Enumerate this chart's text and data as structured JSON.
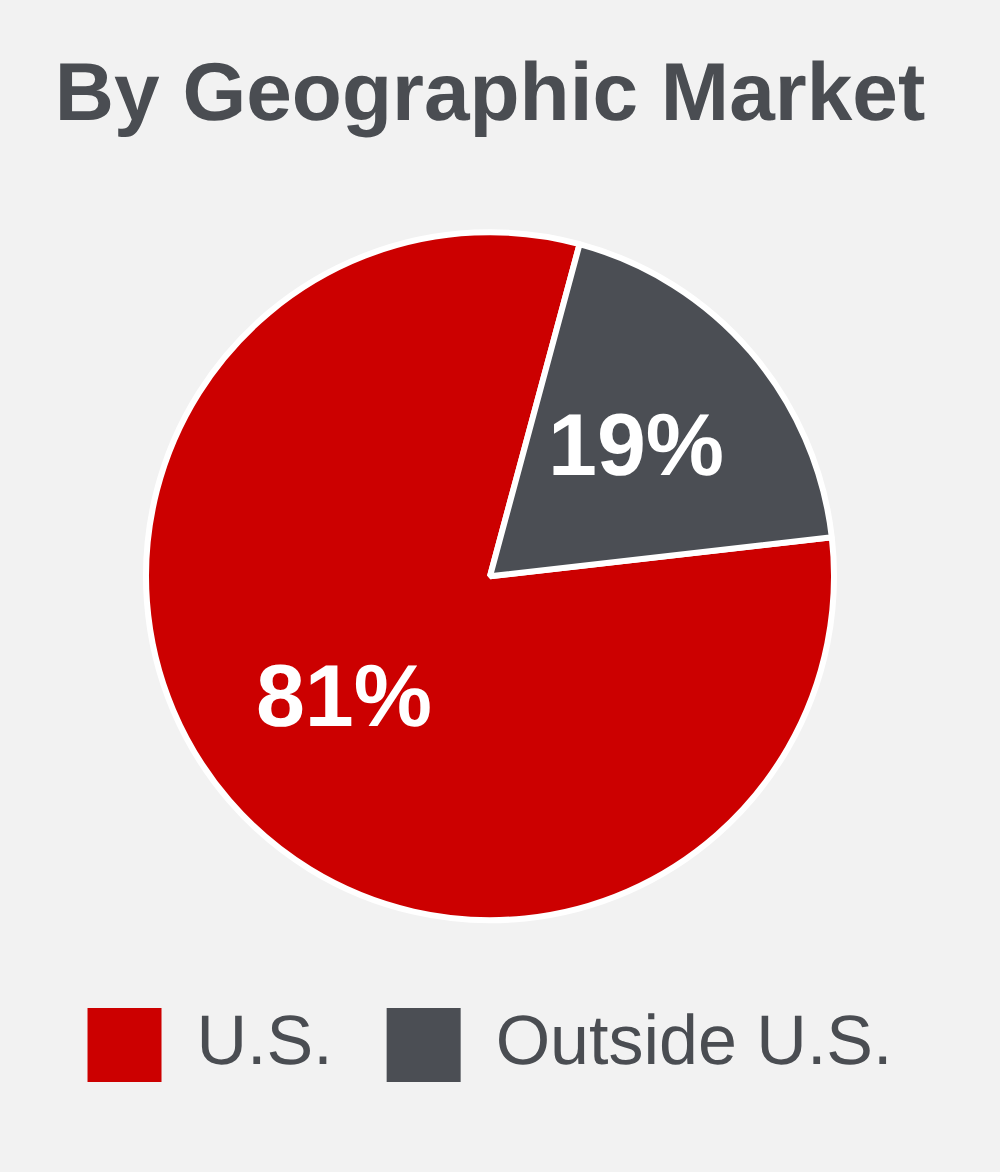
{
  "chart_data": {
    "type": "pie",
    "title": "By Geographic Market",
    "categories": [
      "U.S.",
      "Outside U.S."
    ],
    "values": [
      81,
      19
    ],
    "colors": [
      "#cc0000",
      "#4b4e54"
    ],
    "value_labels": [
      "81%",
      "19%"
    ],
    "legend": "bottom"
  }
}
